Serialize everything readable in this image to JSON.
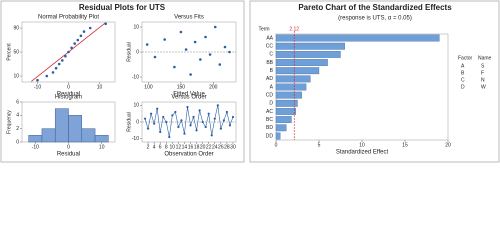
{
  "title": "Residual Plots for UTS",
  "chart_data": [
    {
      "type": "scatter",
      "title": "Normal Probability Plot",
      "xlabel": "Residual",
      "ylabel": "Percent",
      "color": "#2a5ea8",
      "x": [
        -10,
        -7,
        -5,
        -4,
        -3,
        -2,
        -1,
        0,
        1,
        2,
        3,
        4,
        5,
        7,
        12
      ],
      "y": [
        3,
        10,
        16,
        23,
        30,
        36,
        43,
        50,
        57,
        64,
        70,
        77,
        84,
        90,
        97
      ],
      "line_x": [
        -12,
        12
      ],
      "line_y": [
        1,
        99
      ],
      "line_color": "#d62728",
      "xlim": [
        -15,
        15
      ],
      "xticks": [
        -10,
        0,
        10
      ],
      "ylim": [
        0,
        100
      ],
      "yticks": [
        10,
        50,
        90
      ]
    },
    {
      "type": "scatter",
      "title": "Versus Fits",
      "xlabel": "Fitted Value",
      "ylabel": "Residual",
      "color": "#2a5ea8",
      "x": [
        98,
        110,
        125,
        140,
        150,
        158,
        165,
        172,
        180,
        188,
        195,
        203,
        210,
        218,
        225
      ],
      "y": [
        3,
        -2,
        5,
        -6,
        8,
        1,
        -9,
        4,
        -3,
        6,
        -1,
        10,
        -5,
        2,
        0
      ],
      "reference_line": 0,
      "line_color": "#888888",
      "xlim": [
        90,
        235
      ],
      "xticks": [
        100,
        150,
        200
      ],
      "ylim": [
        -12,
        12
      ],
      "yticks": [
        -10,
        0,
        10
      ]
    },
    {
      "type": "histogram",
      "title": "Histogram",
      "xlabel": "Residual",
      "ylabel": "Frequency",
      "color": "#7fa3d6",
      "bins": [
        -12,
        -8,
        -4,
        0,
        4,
        8,
        12
      ],
      "values": [
        1,
        2,
        5,
        4,
        2,
        1
      ],
      "xlim": [
        -14,
        14
      ],
      "xticks": [
        -10,
        0,
        10
      ],
      "ylim": [
        0,
        6
      ],
      "yticks": [
        0,
        2,
        4,
        6
      ]
    },
    {
      "type": "line",
      "title": "Versus Order",
      "xlabel": "Observation Order",
      "ylabel": "Residual",
      "color": "#2a5ea8",
      "x": [
        1,
        2,
        3,
        4,
        5,
        6,
        7,
        8,
        9,
        10,
        11,
        12,
        13,
        14,
        15,
        16,
        17,
        18,
        19,
        20,
        21,
        22,
        23,
        24,
        25,
        26,
        27,
        28,
        29,
        30
      ],
      "values": [
        2,
        -4,
        5,
        -1,
        8,
        -6,
        3,
        0,
        -9,
        4,
        6,
        -3,
        1,
        -7,
        9,
        -2,
        3,
        -5,
        7,
        0,
        -3,
        5,
        -8,
        2,
        10,
        -4,
        1,
        6,
        -2,
        3
      ],
      "reference_line": 0,
      "line_color": "#888888",
      "xlim": [
        0,
        31
      ],
      "xticks": [
        2,
        4,
        6,
        8,
        10,
        12,
        14,
        16,
        18,
        20,
        22,
        24,
        26,
        28,
        30
      ],
      "ylim": [
        -12,
        12
      ],
      "yticks": [
        -10,
        0,
        10
      ]
    },
    {
      "type": "bar",
      "orientation": "horizontal",
      "title": "Pareto Chart of the Standardized Effects",
      "subtitle": "(response is UTS, α = 0.05)",
      "xlabel": "Standardized Effect",
      "ylabel": "Term",
      "color": "#6f9fd8",
      "categories": [
        "AA",
        "CC",
        "C",
        "BB",
        "B",
        "AD",
        "A",
        "CD",
        "D",
        "AC",
        "BC",
        "BD",
        "DD"
      ],
      "values": [
        19,
        8,
        7.5,
        6,
        5,
        4,
        3.5,
        3,
        2.5,
        2.3,
        1.8,
        1.2,
        0.5
      ],
      "reference_line": 2.12,
      "line_color": "#d62728",
      "xlim": [
        0,
        20
      ],
      "xticks": [
        0,
        5,
        10,
        15,
        20
      ],
      "legend_table": {
        "header": [
          "Factor",
          "Name"
        ],
        "rows": [
          [
            "A",
            "S"
          ],
          [
            "B",
            "F"
          ],
          [
            "C",
            "N"
          ],
          [
            "D",
            "W"
          ]
        ]
      }
    }
  ]
}
